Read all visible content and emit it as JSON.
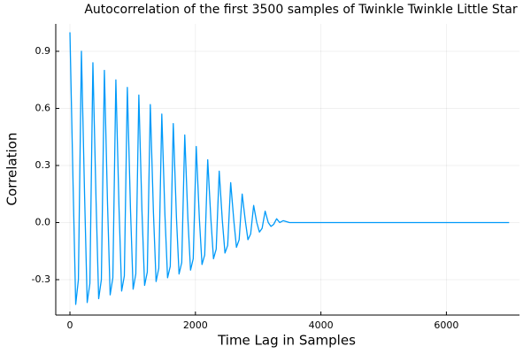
{
  "chart_data": {
    "type": "line",
    "title": "Autocorrelation of the first 3500 samples of Twinkle Twinkle Little Star",
    "x_label": "Time Lag in Samples",
    "y_label": "Correlation",
    "x": [
      0,
      50,
      92,
      135,
      183,
      233,
      275,
      318,
      366,
      416,
      458,
      501,
      549,
      599,
      641,
      684,
      732,
      782,
      824,
      867,
      915,
      965,
      1007,
      1050,
      1098,
      1148,
      1190,
      1233,
      1281,
      1331,
      1373,
      1416,
      1464,
      1514,
      1556,
      1599,
      1647,
      1697,
      1739,
      1782,
      1830,
      1880,
      1922,
      1965,
      2013,
      2063,
      2105,
      2148,
      2196,
      2246,
      2288,
      2331,
      2379,
      2429,
      2471,
      2514,
      2562,
      2612,
      2654,
      2697,
      2745,
      2795,
      2837,
      2880,
      2928,
      2978,
      3020,
      3063,
      3111,
      3161,
      3203,
      3246,
      3294,
      3344,
      3400,
      3500,
      4000,
      5000,
      6000,
      7000
    ],
    "series": [
      {
        "name": "y1",
        "color": "#009af9",
        "values": [
          1.0,
          0.2,
          -0.43,
          -0.3,
          0.9,
          0.15,
          -0.42,
          -0.32,
          0.84,
          0.12,
          -0.4,
          -0.3,
          0.8,
          0.1,
          -0.38,
          -0.29,
          0.75,
          0.08,
          -0.36,
          -0.28,
          0.71,
          0.07,
          -0.35,
          -0.27,
          0.67,
          0.06,
          -0.33,
          -0.26,
          0.62,
          0.05,
          -0.31,
          -0.24,
          0.57,
          0.04,
          -0.29,
          -0.23,
          0.52,
          0.03,
          -0.27,
          -0.21,
          0.46,
          0.02,
          -0.25,
          -0.19,
          0.4,
          0.02,
          -0.22,
          -0.17,
          0.33,
          0.02,
          -0.19,
          -0.14,
          0.27,
          0.01,
          -0.16,
          -0.12,
          0.21,
          0.01,
          -0.13,
          -0.09,
          0.15,
          0.01,
          -0.09,
          -0.06,
          0.09,
          0.0,
          -0.05,
          -0.03,
          0.06,
          0.0,
          -0.02,
          -0.01,
          0.02,
          0.0,
          0.01,
          0.0,
          0.0,
          0.0,
          0.0,
          0.0
        ]
      }
    ],
    "xlim": [
      -226,
      7165
    ],
    "xticks": [
      0,
      2000,
      4000,
      6000
    ],
    "ylim": [
      -0.486,
      1.044
    ],
    "yticks": [
      -0.3,
      {
        "value": 0,
        "label": "0.0"
      },
      0.3,
      0.6,
      0.9
    ],
    "grid": true
  }
}
